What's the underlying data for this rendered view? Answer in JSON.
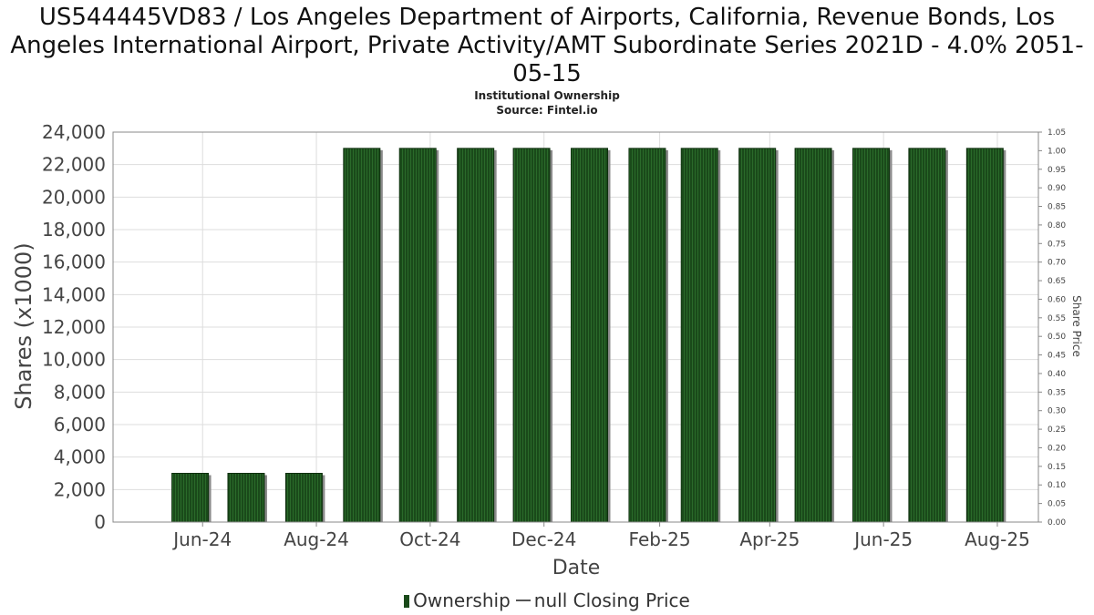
{
  "header": {
    "title": "US544445VD83 / Los Angeles Department of Airports, California, Revenue Bonds, Los Angeles International Airport, Private Activity/AMT Subordinate Series 2021D - 4.0% 2051-05-15",
    "subtitle": "Institutional Ownership",
    "source": "Source: Fintel.io"
  },
  "legend": {
    "ownership": "Ownership",
    "closing_price": "null Closing Price"
  },
  "colors": {
    "bar": "#1a4a1a",
    "bar_stripe": "#2a6a2a",
    "bar_shadow": "#8a8a8a",
    "grid": "#dddddd",
    "axis": "#888888"
  },
  "chart_data": {
    "type": "bar",
    "title": "US544445VD83 / Los Angeles Department of Airports, California, Revenue Bonds, Los Angeles International Airport, Private Activity/AMT Subordinate Series 2021D - 4.0% 2051-05-15",
    "xlabel": "Date",
    "ylabel": "Shares (x1000)",
    "y2label": "Share Price",
    "ylim": [
      0,
      24000
    ],
    "y2lim": [
      0,
      1.05
    ],
    "yticks": [
      "0",
      "2,000",
      "4,000",
      "6,000",
      "8,000",
      "10,000",
      "12,000",
      "14,000",
      "16,000",
      "18,000",
      "20,000",
      "22,000",
      "24,000"
    ],
    "y2ticks": [
      "0.00",
      "0.05",
      "0.10",
      "0.15",
      "0.20",
      "0.25",
      "0.30",
      "0.35",
      "0.40",
      "0.45",
      "0.50",
      "0.55",
      "0.60",
      "0.65",
      "0.70",
      "0.75",
      "0.80",
      "0.85",
      "0.90",
      "0.95",
      "1.00",
      "1.05"
    ],
    "xticks": [
      "Jun-24",
      "Aug-24",
      "Oct-24",
      "Dec-24",
      "Feb-25",
      "Apr-25",
      "Jun-25",
      "Aug-25"
    ],
    "series": [
      {
        "name": "Ownership",
        "x": [
          "2024-06-01",
          "2024-07-01",
          "2024-08-01",
          "2024-09-01",
          "2024-10-01",
          "2024-11-01",
          "2024-12-01",
          "2025-01-01",
          "2025-02-01",
          "2025-03-01",
          "2025-04-01",
          "2025-05-01",
          "2025-06-01",
          "2025-07-01",
          "2025-08-01"
        ],
        "values": [
          3000,
          3000,
          3000,
          23000,
          23000,
          23000,
          23000,
          23000,
          23000,
          23000,
          23000,
          23000,
          23000,
          23000,
          23000
        ]
      }
    ],
    "grid": true,
    "legend_position": "bottom"
  }
}
